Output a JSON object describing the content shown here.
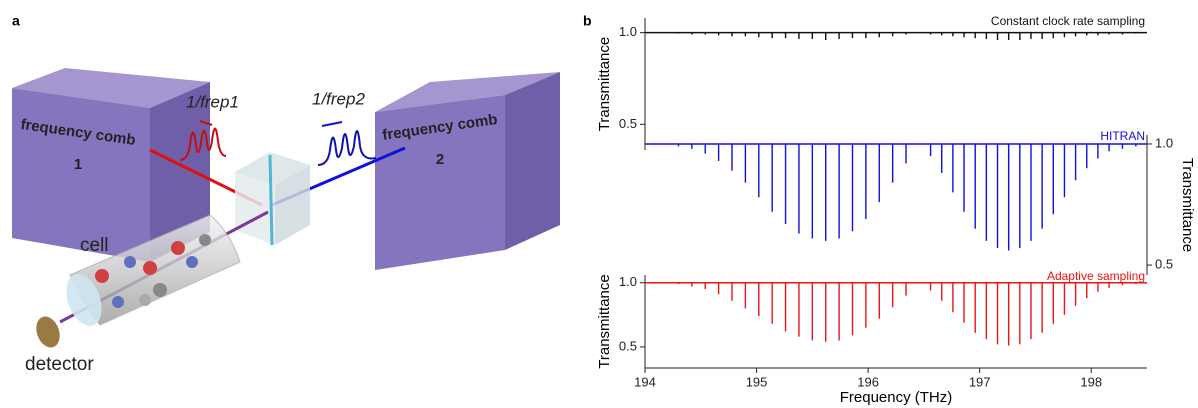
{
  "diagram": {
    "panel_label": "a",
    "comb1": {
      "label": "frequency comb",
      "number": "1"
    },
    "comb2": {
      "label": "frequency comb",
      "number": "2"
    },
    "pulse1_label": "1/frep1",
    "pulse2_label": "1/frep2",
    "cell_label": "cell",
    "detector_label": "detector"
  },
  "panel_b_label": "b",
  "line_positions": [
    194.3,
    194.42,
    194.54,
    194.66,
    194.78,
    194.9,
    195.02,
    195.14,
    195.26,
    195.38,
    195.5,
    195.62,
    195.74,
    195.86,
    195.98,
    196.1,
    196.22,
    196.34,
    196.56,
    196.66,
    196.76,
    196.86,
    196.96,
    197.06,
    197.16,
    197.26,
    197.36,
    197.46,
    197.56,
    197.66,
    197.76,
    197.86,
    197.96,
    198.06,
    198.16,
    198.28,
    198.4
  ],
  "chart_data": [
    {
      "type": "spectrum",
      "title": "Constant clock rate sampling",
      "color": "#111111",
      "ylabel": "Transmittance",
      "yaxis_side": "left",
      "ylim": [
        0.36,
        1.08
      ],
      "yticks": [
        {
          "value": 1.0,
          "label": "1.0"
        },
        {
          "value": 0.5,
          "label": "0.5"
        }
      ],
      "values": [
        0.995,
        0.99,
        0.99,
        0.985,
        0.98,
        0.98,
        0.975,
        0.97,
        0.97,
        0.965,
        0.965,
        0.96,
        0.965,
        0.97,
        0.97,
        0.975,
        0.98,
        0.99,
        0.99,
        0.985,
        0.98,
        0.975,
        0.97,
        0.965,
        0.96,
        0.96,
        0.96,
        0.965,
        0.965,
        0.97,
        0.975,
        0.98,
        0.985,
        0.985,
        0.99,
        0.99,
        0.995
      ]
    },
    {
      "type": "spectrum",
      "title": "HITRAN",
      "color": "#1010dd",
      "ylabel": "Transmittance",
      "yaxis_side": "right",
      "ylim": [
        0.459,
        1.037
      ],
      "yticks": [
        {
          "value": 1.0,
          "label": "1.0"
        },
        {
          "value": 0.5,
          "label": "0.5"
        }
      ],
      "values": [
        0.99,
        0.98,
        0.96,
        0.93,
        0.89,
        0.84,
        0.78,
        0.72,
        0.67,
        0.63,
        0.61,
        0.6,
        0.61,
        0.64,
        0.69,
        0.76,
        0.84,
        0.92,
        0.95,
        0.88,
        0.8,
        0.72,
        0.65,
        0.6,
        0.57,
        0.56,
        0.57,
        0.6,
        0.65,
        0.71,
        0.78,
        0.85,
        0.9,
        0.94,
        0.97,
        0.98,
        0.99
      ]
    },
    {
      "type": "spectrum",
      "title": "Adaptive sampling",
      "color": "#ee1111",
      "ylabel": "Transmittance",
      "yaxis_side": "left",
      "ylim": [
        0.336,
        1.06
      ],
      "yticks": [
        {
          "value": 1.0,
          "label": "1.0"
        },
        {
          "value": 0.5,
          "label": "0.5"
        }
      ],
      "xlabel": "Frequency (THz)",
      "xlim": [
        194,
        198.5
      ],
      "xticks": [
        194,
        195,
        196,
        197,
        198
      ],
      "values": [
        0.99,
        0.97,
        0.95,
        0.91,
        0.86,
        0.8,
        0.74,
        0.68,
        0.62,
        0.58,
        0.55,
        0.54,
        0.55,
        0.59,
        0.65,
        0.72,
        0.81,
        0.9,
        0.94,
        0.86,
        0.77,
        0.69,
        0.61,
        0.56,
        0.52,
        0.51,
        0.52,
        0.56,
        0.61,
        0.68,
        0.75,
        0.82,
        0.88,
        0.93,
        0.96,
        0.98,
        0.99
      ]
    }
  ]
}
